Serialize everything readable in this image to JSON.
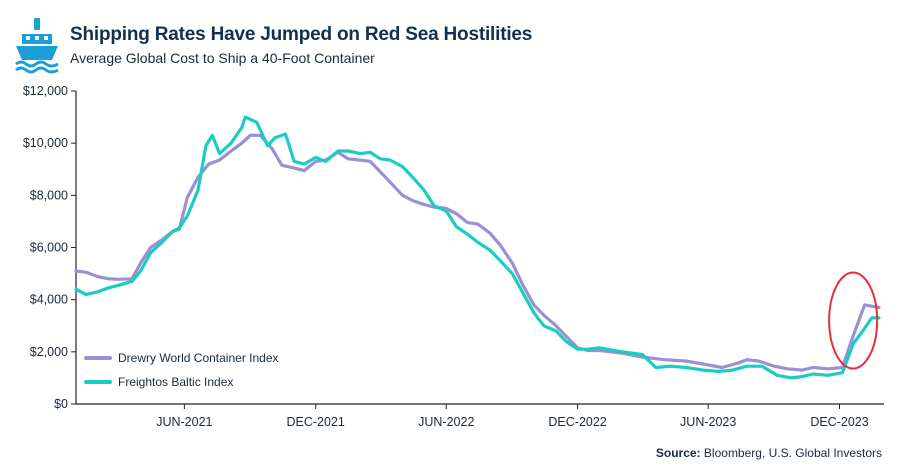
{
  "header": {
    "title": "Shipping Rates Have Jumped on Red Sea Hostilities",
    "subtitle": "Average Global Cost to Ship a 40-Foot Container",
    "icon": "ship-icon"
  },
  "footer": {
    "source_label": "Source:",
    "source_text": "Bloomberg, U.S. Global Investors"
  },
  "colors": {
    "brand": "#1b9fd9",
    "drewry": "#9b8fd6",
    "freightos": "#19cdc3",
    "highlight_circle": "#e5303b",
    "axis": "#222222",
    "text": "#1b2a3a"
  },
  "chart_data": {
    "type": "line",
    "title": "Shipping Rates Have Jumped on Red Sea Hostilities",
    "subtitle": "Average Global Cost to Ship a 40-Foot Container",
    "ylabel": "",
    "xlabel": "",
    "ylim": [
      0,
      12000
    ],
    "xlim": [
      "2021-01-01",
      "2024-02-01"
    ],
    "y_ticks": [
      {
        "value": 0,
        "label": "$0"
      },
      {
        "value": 2000,
        "label": "$2,000"
      },
      {
        "value": 4000,
        "label": "$4,000"
      },
      {
        "value": 6000,
        "label": "$6,000"
      },
      {
        "value": 8000,
        "label": "$8,000"
      },
      {
        "value": 10000,
        "label": "$10,000"
      },
      {
        "value": 12000,
        "label": "$12,000"
      }
    ],
    "x_ticks": [
      {
        "value": "2021-06-01",
        "label": "JUN-2021"
      },
      {
        "value": "2021-12-01",
        "label": "DEC-2021"
      },
      {
        "value": "2022-06-01",
        "label": "JUN-2022"
      },
      {
        "value": "2022-12-01",
        "label": "DEC-2022"
      },
      {
        "value": "2023-06-01",
        "label": "JUN-2023"
      },
      {
        "value": "2023-12-01",
        "label": "DEC-2023"
      }
    ],
    "grid": false,
    "legend_position": "bottom-left",
    "annotation": {
      "type": "ellipse",
      "note": "highlight",
      "x_center": "2023-12-20",
      "y_center": 3200
    },
    "series": [
      {
        "name": "Drewry World Container Index",
        "color": "#9b8fd6",
        "points": [
          [
            "2021-01-01",
            5100
          ],
          [
            "2021-01-15",
            5050
          ],
          [
            "2021-02-01",
            4880
          ],
          [
            "2021-02-15",
            4800
          ],
          [
            "2021-03-01",
            4780
          ],
          [
            "2021-03-20",
            4800
          ],
          [
            "2021-04-01",
            5400
          ],
          [
            "2021-04-15",
            6000
          ],
          [
            "2021-05-01",
            6300
          ],
          [
            "2021-05-15",
            6600
          ],
          [
            "2021-05-25",
            6700
          ],
          [
            "2021-06-05",
            7900
          ],
          [
            "2021-06-20",
            8700
          ],
          [
            "2021-07-05",
            9200
          ],
          [
            "2021-07-20",
            9350
          ],
          [
            "2021-08-05",
            9700
          ],
          [
            "2021-08-20",
            10000
          ],
          [
            "2021-09-01",
            10300
          ],
          [
            "2021-09-15",
            10300
          ],
          [
            "2021-10-01",
            9800
          ],
          [
            "2021-10-15",
            9150
          ],
          [
            "2021-11-01",
            9050
          ],
          [
            "2021-11-15",
            8950
          ],
          [
            "2021-12-01",
            9300
          ],
          [
            "2021-12-15",
            9350
          ],
          [
            "2022-01-01",
            9650
          ],
          [
            "2022-01-15",
            9400
          ],
          [
            "2022-02-01",
            9350
          ],
          [
            "2022-02-15",
            9300
          ],
          [
            "2022-03-01",
            8900
          ],
          [
            "2022-03-15",
            8500
          ],
          [
            "2022-04-01",
            8000
          ],
          [
            "2022-04-15",
            7800
          ],
          [
            "2022-05-01",
            7650
          ],
          [
            "2022-05-15",
            7550
          ],
          [
            "2022-06-01",
            7500
          ],
          [
            "2022-06-15",
            7300
          ],
          [
            "2022-07-01",
            6950
          ],
          [
            "2022-07-15",
            6900
          ],
          [
            "2022-08-01",
            6550
          ],
          [
            "2022-08-15",
            6100
          ],
          [
            "2022-09-01",
            5400
          ],
          [
            "2022-09-15",
            4600
          ],
          [
            "2022-10-01",
            3800
          ],
          [
            "2022-10-15",
            3400
          ],
          [
            "2022-11-01",
            3000
          ],
          [
            "2022-11-15",
            2600
          ],
          [
            "2022-12-01",
            2150
          ],
          [
            "2022-12-15",
            2050
          ],
          [
            "2023-01-01",
            2050
          ],
          [
            "2023-02-01",
            1950
          ],
          [
            "2023-03-01",
            1800
          ],
          [
            "2023-04-01",
            1700
          ],
          [
            "2023-05-01",
            1650
          ],
          [
            "2023-06-01",
            1500
          ],
          [
            "2023-06-20",
            1400
          ],
          [
            "2023-07-10",
            1550
          ],
          [
            "2023-07-25",
            1700
          ],
          [
            "2023-08-10",
            1650
          ],
          [
            "2023-09-01",
            1450
          ],
          [
            "2023-09-20",
            1350
          ],
          [
            "2023-10-10",
            1300
          ],
          [
            "2023-10-25",
            1400
          ],
          [
            "2023-11-15",
            1350
          ],
          [
            "2023-12-05",
            1400
          ],
          [
            "2023-12-20",
            2600
          ],
          [
            "2024-01-05",
            3800
          ],
          [
            "2024-01-15",
            3750
          ],
          [
            "2024-01-25",
            3700
          ]
        ]
      },
      {
        "name": "Freightos Baltic Index",
        "color": "#19cdc3",
        "points": [
          [
            "2021-01-01",
            4400
          ],
          [
            "2021-01-15",
            4200
          ],
          [
            "2021-02-01",
            4300
          ],
          [
            "2021-02-15",
            4450
          ],
          [
            "2021-03-01",
            4550
          ],
          [
            "2021-03-20",
            4700
          ],
          [
            "2021-04-01",
            5100
          ],
          [
            "2021-04-15",
            5800
          ],
          [
            "2021-05-01",
            6200
          ],
          [
            "2021-05-15",
            6600
          ],
          [
            "2021-05-25",
            6750
          ],
          [
            "2021-06-05",
            7200
          ],
          [
            "2021-06-20",
            8200
          ],
          [
            "2021-07-01",
            9900
          ],
          [
            "2021-07-10",
            10300
          ],
          [
            "2021-07-20",
            9600
          ],
          [
            "2021-08-05",
            10000
          ],
          [
            "2021-08-20",
            10600
          ],
          [
            "2021-08-25",
            11000
          ],
          [
            "2021-09-10",
            10800
          ],
          [
            "2021-09-25",
            9900
          ],
          [
            "2021-10-05",
            10200
          ],
          [
            "2021-10-20",
            10350
          ],
          [
            "2021-11-01",
            9300
          ],
          [
            "2021-11-15",
            9200
          ],
          [
            "2021-12-01",
            9450
          ],
          [
            "2021-12-15",
            9300
          ],
          [
            "2022-01-01",
            9700
          ],
          [
            "2022-01-15",
            9700
          ],
          [
            "2022-02-01",
            9600
          ],
          [
            "2022-02-15",
            9650
          ],
          [
            "2022-03-01",
            9400
          ],
          [
            "2022-03-15",
            9350
          ],
          [
            "2022-04-01",
            9100
          ],
          [
            "2022-04-15",
            8700
          ],
          [
            "2022-05-01",
            8200
          ],
          [
            "2022-05-15",
            7600
          ],
          [
            "2022-06-01",
            7400
          ],
          [
            "2022-06-15",
            6800
          ],
          [
            "2022-07-01",
            6500
          ],
          [
            "2022-07-15",
            6200
          ],
          [
            "2022-08-01",
            5900
          ],
          [
            "2022-08-15",
            5500
          ],
          [
            "2022-09-01",
            5000
          ],
          [
            "2022-09-15",
            4300
          ],
          [
            "2022-10-01",
            3500
          ],
          [
            "2022-10-15",
            3000
          ],
          [
            "2022-11-01",
            2800
          ],
          [
            "2022-11-15",
            2400
          ],
          [
            "2022-12-01",
            2100
          ],
          [
            "2022-12-15",
            2100
          ],
          [
            "2023-01-01",
            2150
          ],
          [
            "2023-02-01",
            2000
          ],
          [
            "2023-03-01",
            1900
          ],
          [
            "2023-03-20",
            1400
          ],
          [
            "2023-04-10",
            1450
          ],
          [
            "2023-05-01",
            1400
          ],
          [
            "2023-05-25",
            1300
          ],
          [
            "2023-06-15",
            1250
          ],
          [
            "2023-07-05",
            1300
          ],
          [
            "2023-07-25",
            1450
          ],
          [
            "2023-08-15",
            1450
          ],
          [
            "2023-09-05",
            1100
          ],
          [
            "2023-09-25",
            1000
          ],
          [
            "2023-10-10",
            1050
          ],
          [
            "2023-10-25",
            1150
          ],
          [
            "2023-11-15",
            1100
          ],
          [
            "2023-12-05",
            1200
          ],
          [
            "2023-12-20",
            2300
          ],
          [
            "2024-01-05",
            2900
          ],
          [
            "2024-01-15",
            3300
          ],
          [
            "2024-01-25",
            3300
          ]
        ]
      }
    ]
  }
}
